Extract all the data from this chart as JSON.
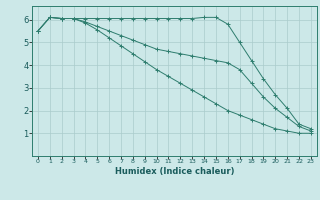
{
  "xlabel": "Humidex (Indice chaleur)",
  "bg_color": "#cce8e8",
  "line_color": "#2e7d6e",
  "grid_color": "#aacccc",
  "xlim": [
    -0.5,
    23.5
  ],
  "ylim": [
    0,
    6.6
  ],
  "yticks": [
    1,
    2,
    3,
    4,
    5,
    6
  ],
  "xticks": [
    0,
    1,
    2,
    3,
    4,
    5,
    6,
    7,
    8,
    9,
    10,
    11,
    12,
    13,
    14,
    15,
    16,
    17,
    18,
    19,
    20,
    21,
    22,
    23
  ],
  "series": [
    {
      "x": [
        0,
        1,
        2,
        3,
        4,
        5,
        6,
        7,
        8,
        9,
        10,
        11,
        12,
        13,
        14,
        15,
        16,
        17,
        18,
        19,
        20,
        21,
        22,
        23
      ],
      "y": [
        5.5,
        6.1,
        6.05,
        6.05,
        6.05,
        6.05,
        6.05,
        6.05,
        6.05,
        6.05,
        6.05,
        6.05,
        6.05,
        6.05,
        6.1,
        6.1,
        5.8,
        5.0,
        4.2,
        3.4,
        2.7,
        2.1,
        1.4,
        1.2
      ]
    },
    {
      "x": [
        0,
        1,
        2,
        3,
        4,
        5,
        6,
        7,
        8,
        9,
        10,
        11,
        12,
        13,
        14,
        15,
        16,
        17,
        18,
        19,
        20,
        21,
        22,
        23
      ],
      "y": [
        5.5,
        6.1,
        6.05,
        6.05,
        5.9,
        5.7,
        5.5,
        5.3,
        5.1,
        4.9,
        4.7,
        4.6,
        4.5,
        4.4,
        4.3,
        4.2,
        4.1,
        3.8,
        3.2,
        2.6,
        2.1,
        1.7,
        1.3,
        1.1
      ]
    },
    {
      "x": [
        0,
        1,
        2,
        3,
        4,
        5,
        6,
        7,
        8,
        9,
        10,
        11,
        12,
        13,
        14,
        15,
        16,
        17,
        18,
        19,
        20,
        21,
        22,
        23
      ],
      "y": [
        5.5,
        6.1,
        6.05,
        6.05,
        5.85,
        5.55,
        5.2,
        4.85,
        4.5,
        4.15,
        3.8,
        3.5,
        3.2,
        2.9,
        2.6,
        2.3,
        2.0,
        1.8,
        1.6,
        1.4,
        1.2,
        1.1,
        1.0,
        1.0
      ]
    }
  ]
}
